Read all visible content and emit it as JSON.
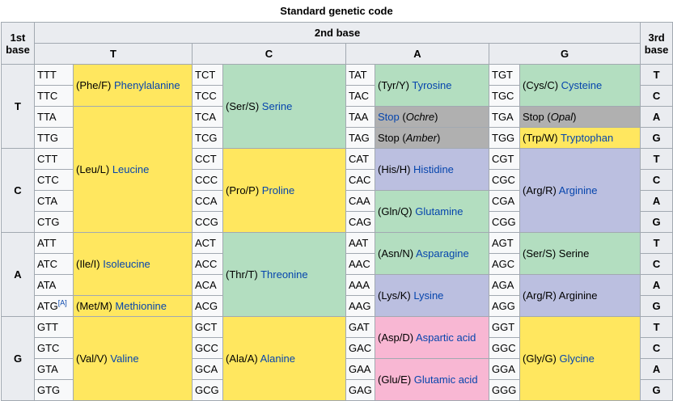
{
  "caption": "Standard genetic code",
  "header": {
    "first_base_1": "1st",
    "first_base_2": "base",
    "second_base": "2nd base",
    "third_base_1": "3rd",
    "third_base_2": "base",
    "cols": [
      "T",
      "C",
      "A",
      "G"
    ]
  },
  "footnote_marker": "[A]",
  "groups": [
    {
      "base": "T",
      "codons": {
        "T": [
          "TTT",
          "TTC",
          "TTA",
          "TTG"
        ],
        "C": [
          "TCT",
          "TCC",
          "TCA",
          "TCG"
        ],
        "A": [
          "TAT",
          "TAC",
          "TAA",
          "TAG"
        ],
        "G": [
          "TGT",
          "TGC",
          "TGA",
          "TGG"
        ]
      },
      "third": [
        "T",
        "C",
        "A",
        "G"
      ]
    },
    {
      "base": "C",
      "codons": {
        "T": [
          "CTT",
          "CTC",
          "CTA",
          "CTG"
        ],
        "C": [
          "CCT",
          "CCC",
          "CCA",
          "CCG"
        ],
        "A": [
          "CAT",
          "CAC",
          "CAA",
          "CAG"
        ],
        "G": [
          "CGT",
          "CGC",
          "CGA",
          "CGG"
        ]
      },
      "third": [
        "T",
        "C",
        "A",
        "G"
      ]
    },
    {
      "base": "A",
      "codons": {
        "T": [
          "ATT",
          "ATC",
          "ATA",
          "ATG"
        ],
        "C": [
          "ACT",
          "ACC",
          "ACA",
          "ACG"
        ],
        "A": [
          "AAT",
          "AAC",
          "AAA",
          "AAG"
        ],
        "G": [
          "AGT",
          "AGC",
          "AGA",
          "AGG"
        ]
      },
      "third": [
        "T",
        "C",
        "A",
        "G"
      ]
    },
    {
      "base": "G",
      "codons": {
        "T": [
          "GTT",
          "GTC",
          "GTA",
          "GTG"
        ],
        "C": [
          "GCT",
          "GCC",
          "GCA",
          "GCG"
        ],
        "A": [
          "GAT",
          "GAC",
          "GAA",
          "GAG"
        ],
        "G": [
          "GGT",
          "GGC",
          "GGA",
          "GGG"
        ]
      },
      "third": [
        "T",
        "C",
        "A",
        "G"
      ]
    }
  ],
  "amino": {
    "phe": {
      "code": "(Phe/F) ",
      "name": "Phenylalanine"
    },
    "leu": {
      "code": "(Leu/L) ",
      "name": "Leucine"
    },
    "ile": {
      "code": "(Ile/I) ",
      "name": "Isoleucine"
    },
    "met": {
      "code": "(Met/M) ",
      "name": "Methionine"
    },
    "val": {
      "code": "(Val/V) ",
      "name": "Valine"
    },
    "ser": {
      "code": "(Ser/S) ",
      "name": "Serine"
    },
    "pro": {
      "code": "(Pro/P) ",
      "name": "Proline"
    },
    "thr": {
      "code": "(Thr/T) ",
      "name": "Threonine"
    },
    "ala": {
      "code": "(Ala/A) ",
      "name": "Alanine"
    },
    "tyr": {
      "code": "(Tyr/Y) ",
      "name": "Tyrosine"
    },
    "stop_ochre": {
      "stop": "Stop",
      "open": " (",
      "name": "Ochre",
      "close": ")"
    },
    "stop_amber": {
      "stop": "Stop",
      "open": " (",
      "name": "Amber",
      "close": ")"
    },
    "his": {
      "code": "(His/H) ",
      "name": "Histidine"
    },
    "gln": {
      "code": "(Gln/Q) ",
      "name": "Glutamine"
    },
    "asn": {
      "code": "(Asn/N) ",
      "name": "Asparagine"
    },
    "lys": {
      "code": "(Lys/K) ",
      "name": "Lysine"
    },
    "asp": {
      "code": "(Asp/D) ",
      "name": "Aspartic acid"
    },
    "glu": {
      "code": "(Glu/E) ",
      "name": "Glutamic acid"
    },
    "cys": {
      "code": "(Cys/C) ",
      "name": "Cysteine"
    },
    "stop_opal": {
      "stop": "Stop",
      "open": " (",
      "name": "Opal",
      "close": ")"
    },
    "trp": {
      "code": "(Trp/W) ",
      "name": "Tryptophan"
    },
    "arg": {
      "code": "(Arg/R) ",
      "name": "Arginine"
    },
    "ser2": {
      "text": "(Ser/S) Serine"
    },
    "arg2": {
      "text": "(Arg/R) Arginine"
    },
    "gly": {
      "code": "(Gly/G) ",
      "name": "Glycine"
    }
  },
  "colors": {
    "nonpolar": "#ffe75f",
    "polar": "#b3dec0",
    "basic": "#bbbfe0",
    "acidic": "#f8b7d3",
    "stop": "#b0b0b0",
    "link": "#0645ad",
    "header_bg": "#eaecf0",
    "border": "#a2a9b1"
  }
}
